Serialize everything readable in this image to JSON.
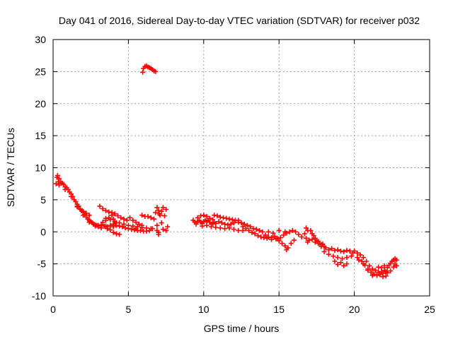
{
  "chart_data": {
    "type": "scatter",
    "title": "Day 041 of 2016, Sidereal Day-to-day VTEC variation (SDTVAR) for receiver p032",
    "xlabel": "GPS time / hours",
    "ylabel": "SDTVAR / TECUs",
    "xlim": [
      0,
      25
    ],
    "ylim": [
      -10,
      30
    ],
    "xticks": [
      0,
      5,
      10,
      15,
      20,
      25
    ],
    "yticks": [
      -10,
      -5,
      0,
      5,
      10,
      15,
      20,
      25,
      30
    ],
    "xtick_labels": [
      "0",
      "5",
      "10",
      "15",
      "20",
      "25"
    ],
    "ytick_labels": [
      "-10",
      "-5",
      "0",
      "5",
      "10",
      "15",
      "20",
      "25",
      "30"
    ],
    "grid": true,
    "marker": "plus",
    "color": "#ff0000",
    "series": [
      {
        "name": "SDTVAR",
        "points": [
          [
            0.2,
            7.5
          ],
          [
            0.25,
            8.5
          ],
          [
            0.3,
            8.8
          ],
          [
            0.35,
            7.8
          ],
          [
            0.4,
            8.3
          ],
          [
            0.5,
            7.8
          ],
          [
            0.6,
            7.6
          ],
          [
            0.7,
            7.4
          ],
          [
            0.8,
            7.0
          ],
          [
            0.9,
            6.9
          ],
          [
            1.0,
            6.6
          ],
          [
            1.1,
            6.2
          ],
          [
            1.2,
            5.9
          ],
          [
            1.3,
            5.5
          ],
          [
            1.4,
            5.0
          ],
          [
            1.5,
            4.7
          ],
          [
            1.6,
            4.3
          ],
          [
            1.7,
            4.0
          ],
          [
            1.8,
            3.6
          ],
          [
            1.9,
            3.3
          ],
          [
            2.0,
            3.0
          ],
          [
            2.1,
            2.7
          ],
          [
            2.2,
            2.3
          ],
          [
            2.3,
            2.0
          ],
          [
            2.4,
            1.8
          ],
          [
            2.5,
            1.6
          ],
          [
            2.6,
            1.4
          ],
          [
            2.7,
            1.2
          ],
          [
            2.8,
            1.1
          ],
          [
            2.9,
            1.0
          ],
          [
            3.0,
            1.0
          ],
          [
            3.2,
            1.1
          ],
          [
            3.4,
            0.9
          ],
          [
            3.6,
            0.8
          ],
          [
            3.8,
            1.0
          ],
          [
            4.0,
            1.2
          ],
          [
            4.2,
            1.0
          ],
          [
            4.4,
            0.9
          ],
          [
            4.6,
            0.8
          ],
          [
            4.8,
            0.6
          ],
          [
            5.0,
            0.5
          ],
          [
            5.2,
            0.4
          ],
          [
            5.4,
            0.3
          ],
          [
            5.6,
            0.2
          ],
          [
            5.8,
            0.2
          ],
          [
            6.0,
            0.1
          ],
          [
            6.2,
            0.1
          ],
          [
            6.4,
            0.2
          ],
          [
            6.6,
            0.5
          ],
          [
            0.4,
            7.3
          ],
          [
            0.8,
            6.6
          ],
          [
            1.2,
            5.5
          ],
          [
            1.6,
            4.0
          ],
          [
            2.0,
            2.6
          ],
          [
            2.4,
            1.5
          ],
          [
            2.8,
            0.9
          ],
          [
            3.2,
            0.6
          ],
          [
            3.6,
            0.5
          ],
          [
            4.0,
            0.8
          ],
          [
            1.6,
            3.9
          ],
          [
            1.8,
            3.5
          ],
          [
            2.0,
            3.2
          ],
          [
            2.2,
            2.9
          ],
          [
            2.4,
            2.6
          ],
          [
            3.5,
            2.1
          ],
          [
            3.8,
            1.9
          ],
          [
            4.1,
            1.6
          ],
          [
            4.4,
            1.4
          ],
          [
            4.7,
            1.2
          ],
          [
            5.0,
            1.0
          ],
          [
            5.3,
            0.9
          ],
          [
            5.6,
            0.8
          ],
          [
            5.9,
            0.7
          ],
          [
            6.2,
            0.6
          ],
          [
            6.5,
            0.5
          ],
          [
            3.1,
            4.0
          ],
          [
            3.3,
            3.6
          ],
          [
            3.5,
            3.3
          ],
          [
            3.7,
            3.1
          ],
          [
            3.9,
            3.0
          ],
          [
            4.1,
            2.8
          ],
          [
            4.3,
            2.5
          ],
          [
            4.5,
            2.2
          ],
          [
            4.7,
            2.0
          ],
          [
            4.9,
            1.8
          ],
          [
            3.3,
            1.5
          ],
          [
            3.5,
            1.8
          ],
          [
            3.7,
            2.2
          ],
          [
            3.9,
            2.6
          ],
          [
            4.0,
            2.0
          ],
          [
            4.2,
            1.4
          ],
          [
            3.0,
            0.8
          ],
          [
            3.6,
            0.5
          ],
          [
            3.5,
            0.9
          ],
          [
            3.8,
            0.3
          ],
          [
            4.0,
            -0.1
          ],
          [
            4.2,
            -0.3
          ],
          [
            4.4,
            -0.4
          ],
          [
            5.1,
            2.2
          ],
          [
            5.3,
            1.8
          ],
          [
            5.5,
            1.5
          ],
          [
            5.7,
            1.2
          ],
          [
            5.9,
            1.0
          ],
          [
            5.5,
            0.5
          ],
          [
            5.9,
            2.6
          ],
          [
            6.1,
            2.4
          ],
          [
            6.3,
            2.4
          ],
          [
            6.5,
            2.2
          ],
          [
            6.7,
            2.0
          ],
          [
            6.8,
            3.0
          ],
          [
            6.9,
            3.8
          ],
          [
            7.0,
            3.3
          ],
          [
            7.05,
            2.8
          ],
          [
            7.1,
            2.6
          ],
          [
            7.2,
            3.2
          ],
          [
            7.3,
            3.8
          ],
          [
            7.4,
            2.5
          ],
          [
            7.5,
            3.5
          ],
          [
            6.9,
            1.0
          ],
          [
            6.9,
            0.2
          ],
          [
            7.0,
            -0.1
          ],
          [
            7.0,
            -0.4
          ],
          [
            7.2,
            1.4
          ],
          [
            7.3,
            0.4
          ],
          [
            7.5,
            0.2
          ],
          [
            7.6,
            0.8
          ],
          [
            6.0,
            25.5
          ],
          [
            6.1,
            25.8
          ],
          [
            6.2,
            25.9
          ],
          [
            6.3,
            25.7
          ],
          [
            6.4,
            25.6
          ],
          [
            6.5,
            25.5
          ],
          [
            6.6,
            25.3
          ],
          [
            6.7,
            25.1
          ],
          [
            6.8,
            25.0
          ],
          [
            5.95,
            24.9
          ],
          [
            9.3,
            1.8
          ],
          [
            9.4,
            1.5
          ],
          [
            9.5,
            1.2
          ],
          [
            9.6,
            1.6
          ],
          [
            9.7,
            1.8
          ],
          [
            9.8,
            1.5
          ],
          [
            9.9,
            1.3
          ],
          [
            10.0,
            1.6
          ],
          [
            10.1,
            1.8
          ],
          [
            10.2,
            1.6
          ],
          [
            10.3,
            1.8
          ],
          [
            10.4,
            1.5
          ],
          [
            10.5,
            1.2
          ],
          [
            10.6,
            1.3
          ],
          [
            10.7,
            1.5
          ],
          [
            10.8,
            1.3
          ],
          [
            9.6,
            2.2
          ],
          [
            9.8,
            2.5
          ],
          [
            10.0,
            2.6
          ],
          [
            10.2,
            2.4
          ],
          [
            10.4,
            2.1
          ],
          [
            10.6,
            1.9
          ],
          [
            9.9,
            0.9
          ],
          [
            10.2,
            1.0
          ],
          [
            10.5,
            0.8
          ],
          [
            10.8,
            0.7
          ],
          [
            11.1,
            0.6
          ],
          [
            11.4,
            0.5
          ],
          [
            11.7,
            0.6
          ],
          [
            12.0,
            0.4
          ],
          [
            12.3,
            0.2
          ],
          [
            12.6,
            0.2
          ],
          [
            10.7,
            2.6
          ],
          [
            10.9,
            2.5
          ],
          [
            11.1,
            2.3
          ],
          [
            11.3,
            2.2
          ],
          [
            11.5,
            2.1
          ],
          [
            11.7,
            2.0
          ],
          [
            11.9,
            1.9
          ],
          [
            12.1,
            1.8
          ],
          [
            12.3,
            1.8
          ],
          [
            11.0,
            1.6
          ],
          [
            11.2,
            1.4
          ],
          [
            11.4,
            1.2
          ],
          [
            11.6,
            1.1
          ],
          [
            11.8,
            1.2
          ],
          [
            12.0,
            1.4
          ],
          [
            12.3,
            1.5
          ],
          [
            12.5,
            1.4
          ],
          [
            12.7,
            1.2
          ],
          [
            12.9,
            1.0
          ],
          [
            13.1,
            0.8
          ],
          [
            13.3,
            0.5
          ],
          [
            13.5,
            0.4
          ],
          [
            13.7,
            0.2
          ],
          [
            13.9,
            0.0
          ],
          [
            12.6,
            0.8
          ],
          [
            12.8,
            0.5
          ],
          [
            13.0,
            0.2
          ],
          [
            13.2,
            -0.1
          ],
          [
            13.4,
            -0.3
          ],
          [
            13.6,
            -0.6
          ],
          [
            13.8,
            -0.8
          ],
          [
            14.0,
            -0.9
          ],
          [
            14.1,
            -0.5
          ],
          [
            14.3,
            -0.8
          ],
          [
            14.5,
            -0.9
          ],
          [
            14.7,
            -0.7
          ],
          [
            14.9,
            -1.0
          ],
          [
            15.1,
            -0.9
          ],
          [
            15.3,
            -0.5
          ],
          [
            15.5,
            -0.2
          ],
          [
            15.7,
            0.0
          ],
          [
            14.2,
            -1.0
          ],
          [
            14.5,
            -1.2
          ],
          [
            14.8,
            -1.1
          ],
          [
            15.0,
            -1.4
          ],
          [
            15.2,
            -1.8
          ],
          [
            15.4,
            -2.2
          ],
          [
            15.5,
            -2.8
          ],
          [
            15.6,
            -2.5
          ],
          [
            15.8,
            -1.8
          ],
          [
            16.0,
            -1.3
          ],
          [
            14.3,
            0.0
          ],
          [
            14.6,
            -0.2
          ],
          [
            15.0,
            0.2
          ],
          [
            15.4,
            0.0
          ],
          [
            15.9,
            0.2
          ],
          [
            16.1,
            0.0
          ],
          [
            16.3,
            -0.4
          ],
          [
            16.5,
            -0.8
          ],
          [
            16.7,
            -0.3
          ],
          [
            16.8,
            0.6
          ],
          [
            16.9,
            0.2
          ],
          [
            16.8,
            -1.0
          ],
          [
            16.9,
            -1.6
          ],
          [
            17.0,
            -1.3
          ],
          [
            17.1,
            0.2
          ],
          [
            17.2,
            -0.3
          ],
          [
            17.3,
            -0.6
          ],
          [
            17.4,
            -1.0
          ],
          [
            17.5,
            -1.3
          ],
          [
            17.6,
            -1.5
          ],
          [
            17.7,
            -1.8
          ],
          [
            17.8,
            -2.0
          ],
          [
            17.9,
            -1.9
          ],
          [
            17.2,
            -1.2
          ],
          [
            17.4,
            -1.6
          ],
          [
            17.6,
            -1.8
          ],
          [
            17.8,
            -2.3
          ],
          [
            18.0,
            -2.3
          ],
          [
            18.1,
            -2.5
          ],
          [
            18.3,
            -2.8
          ],
          [
            18.5,
            -2.6
          ],
          [
            18.7,
            -2.9
          ],
          [
            18.9,
            -2.8
          ],
          [
            19.1,
            -3.0
          ],
          [
            19.3,
            -3.1
          ],
          [
            19.5,
            -2.9
          ],
          [
            19.7,
            -3.0
          ],
          [
            19.9,
            -3.3
          ],
          [
            18.0,
            -3.1
          ],
          [
            18.3,
            -3.5
          ],
          [
            18.6,
            -3.8
          ],
          [
            18.9,
            -4.0
          ],
          [
            19.2,
            -4.2
          ],
          [
            19.5,
            -4.0
          ],
          [
            19.8,
            -3.8
          ],
          [
            18.7,
            -4.6
          ],
          [
            18.9,
            -5.1
          ],
          [
            19.1,
            -4.8
          ],
          [
            19.3,
            -5.3
          ],
          [
            19.5,
            -5.0
          ],
          [
            20.0,
            -3.0
          ],
          [
            20.2,
            -3.3
          ],
          [
            20.4,
            -3.6
          ],
          [
            20.6,
            -4.0
          ],
          [
            20.8,
            -4.6
          ],
          [
            21.0,
            -5.3
          ],
          [
            21.2,
            -5.8
          ],
          [
            21.4,
            -6.0
          ],
          [
            21.6,
            -6.3
          ],
          [
            21.8,
            -6.2
          ],
          [
            20.5,
            -4.6
          ],
          [
            20.7,
            -5.2
          ],
          [
            20.9,
            -5.8
          ],
          [
            21.1,
            -6.3
          ],
          [
            21.3,
            -6.6
          ],
          [
            21.5,
            -6.8
          ],
          [
            21.7,
            -6.7
          ],
          [
            21.9,
            -6.5
          ],
          [
            22.0,
            -6.0
          ],
          [
            22.1,
            -6.2
          ],
          [
            22.2,
            -5.6
          ],
          [
            22.3,
            -5.2
          ],
          [
            22.4,
            -4.9
          ],
          [
            22.5,
            -4.6
          ],
          [
            22.6,
            -4.4
          ],
          [
            22.7,
            -4.2
          ],
          [
            22.8,
            -4.4
          ],
          [
            21.6,
            -5.5
          ],
          [
            21.8,
            -5.6
          ],
          [
            22.0,
            -5.3
          ],
          [
            22.2,
            -6.4
          ],
          [
            22.4,
            -6.1
          ],
          [
            22.6,
            -5.5
          ],
          [
            22.7,
            -5.0
          ],
          [
            22.8,
            -5.3
          ],
          [
            20.2,
            -4.0
          ],
          [
            20.3,
            -4.4
          ],
          [
            20.6,
            -5.0
          ],
          [
            20.9,
            -6.0
          ],
          [
            21.2,
            -6.8
          ],
          [
            21.9,
            -7.0
          ],
          [
            22.1,
            -6.9
          ]
        ]
      }
    ]
  }
}
